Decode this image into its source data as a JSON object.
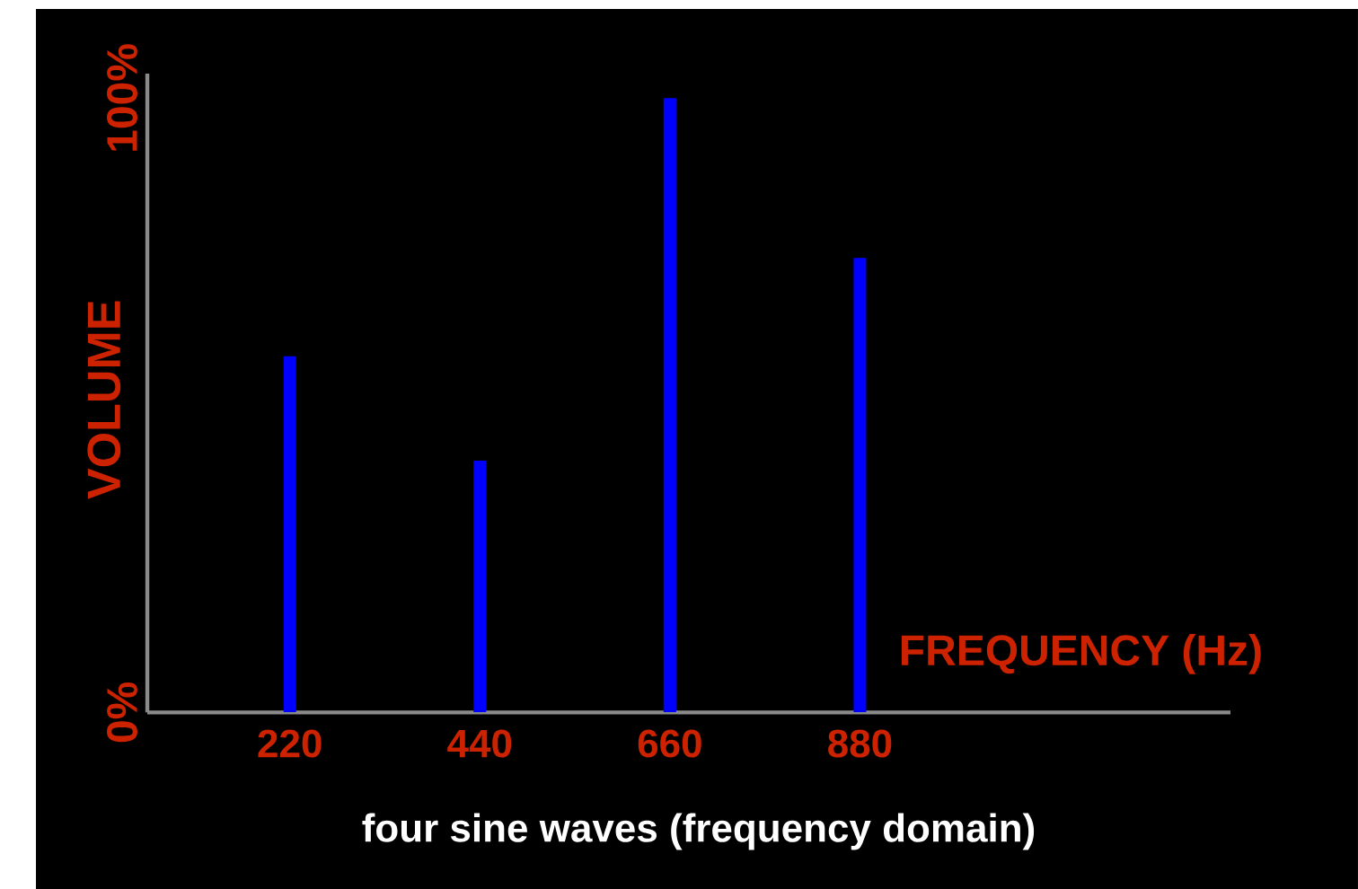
{
  "chart_data": {
    "type": "bar",
    "title": "four sine waves (frequency domain)",
    "xlabel": "FREQUENCY (Hz)",
    "ylabel": "VOLUME",
    "categories": [
      "220",
      "440",
      "660",
      "880"
    ],
    "values": [
      58,
      41,
      100,
      74
    ],
    "color": "#0000ff",
    "ylim": [
      0,
      104
    ],
    "yticks": [
      {
        "value": 0,
        "label": "0%"
      },
      {
        "value": 100,
        "label": "100%"
      }
    ]
  }
}
